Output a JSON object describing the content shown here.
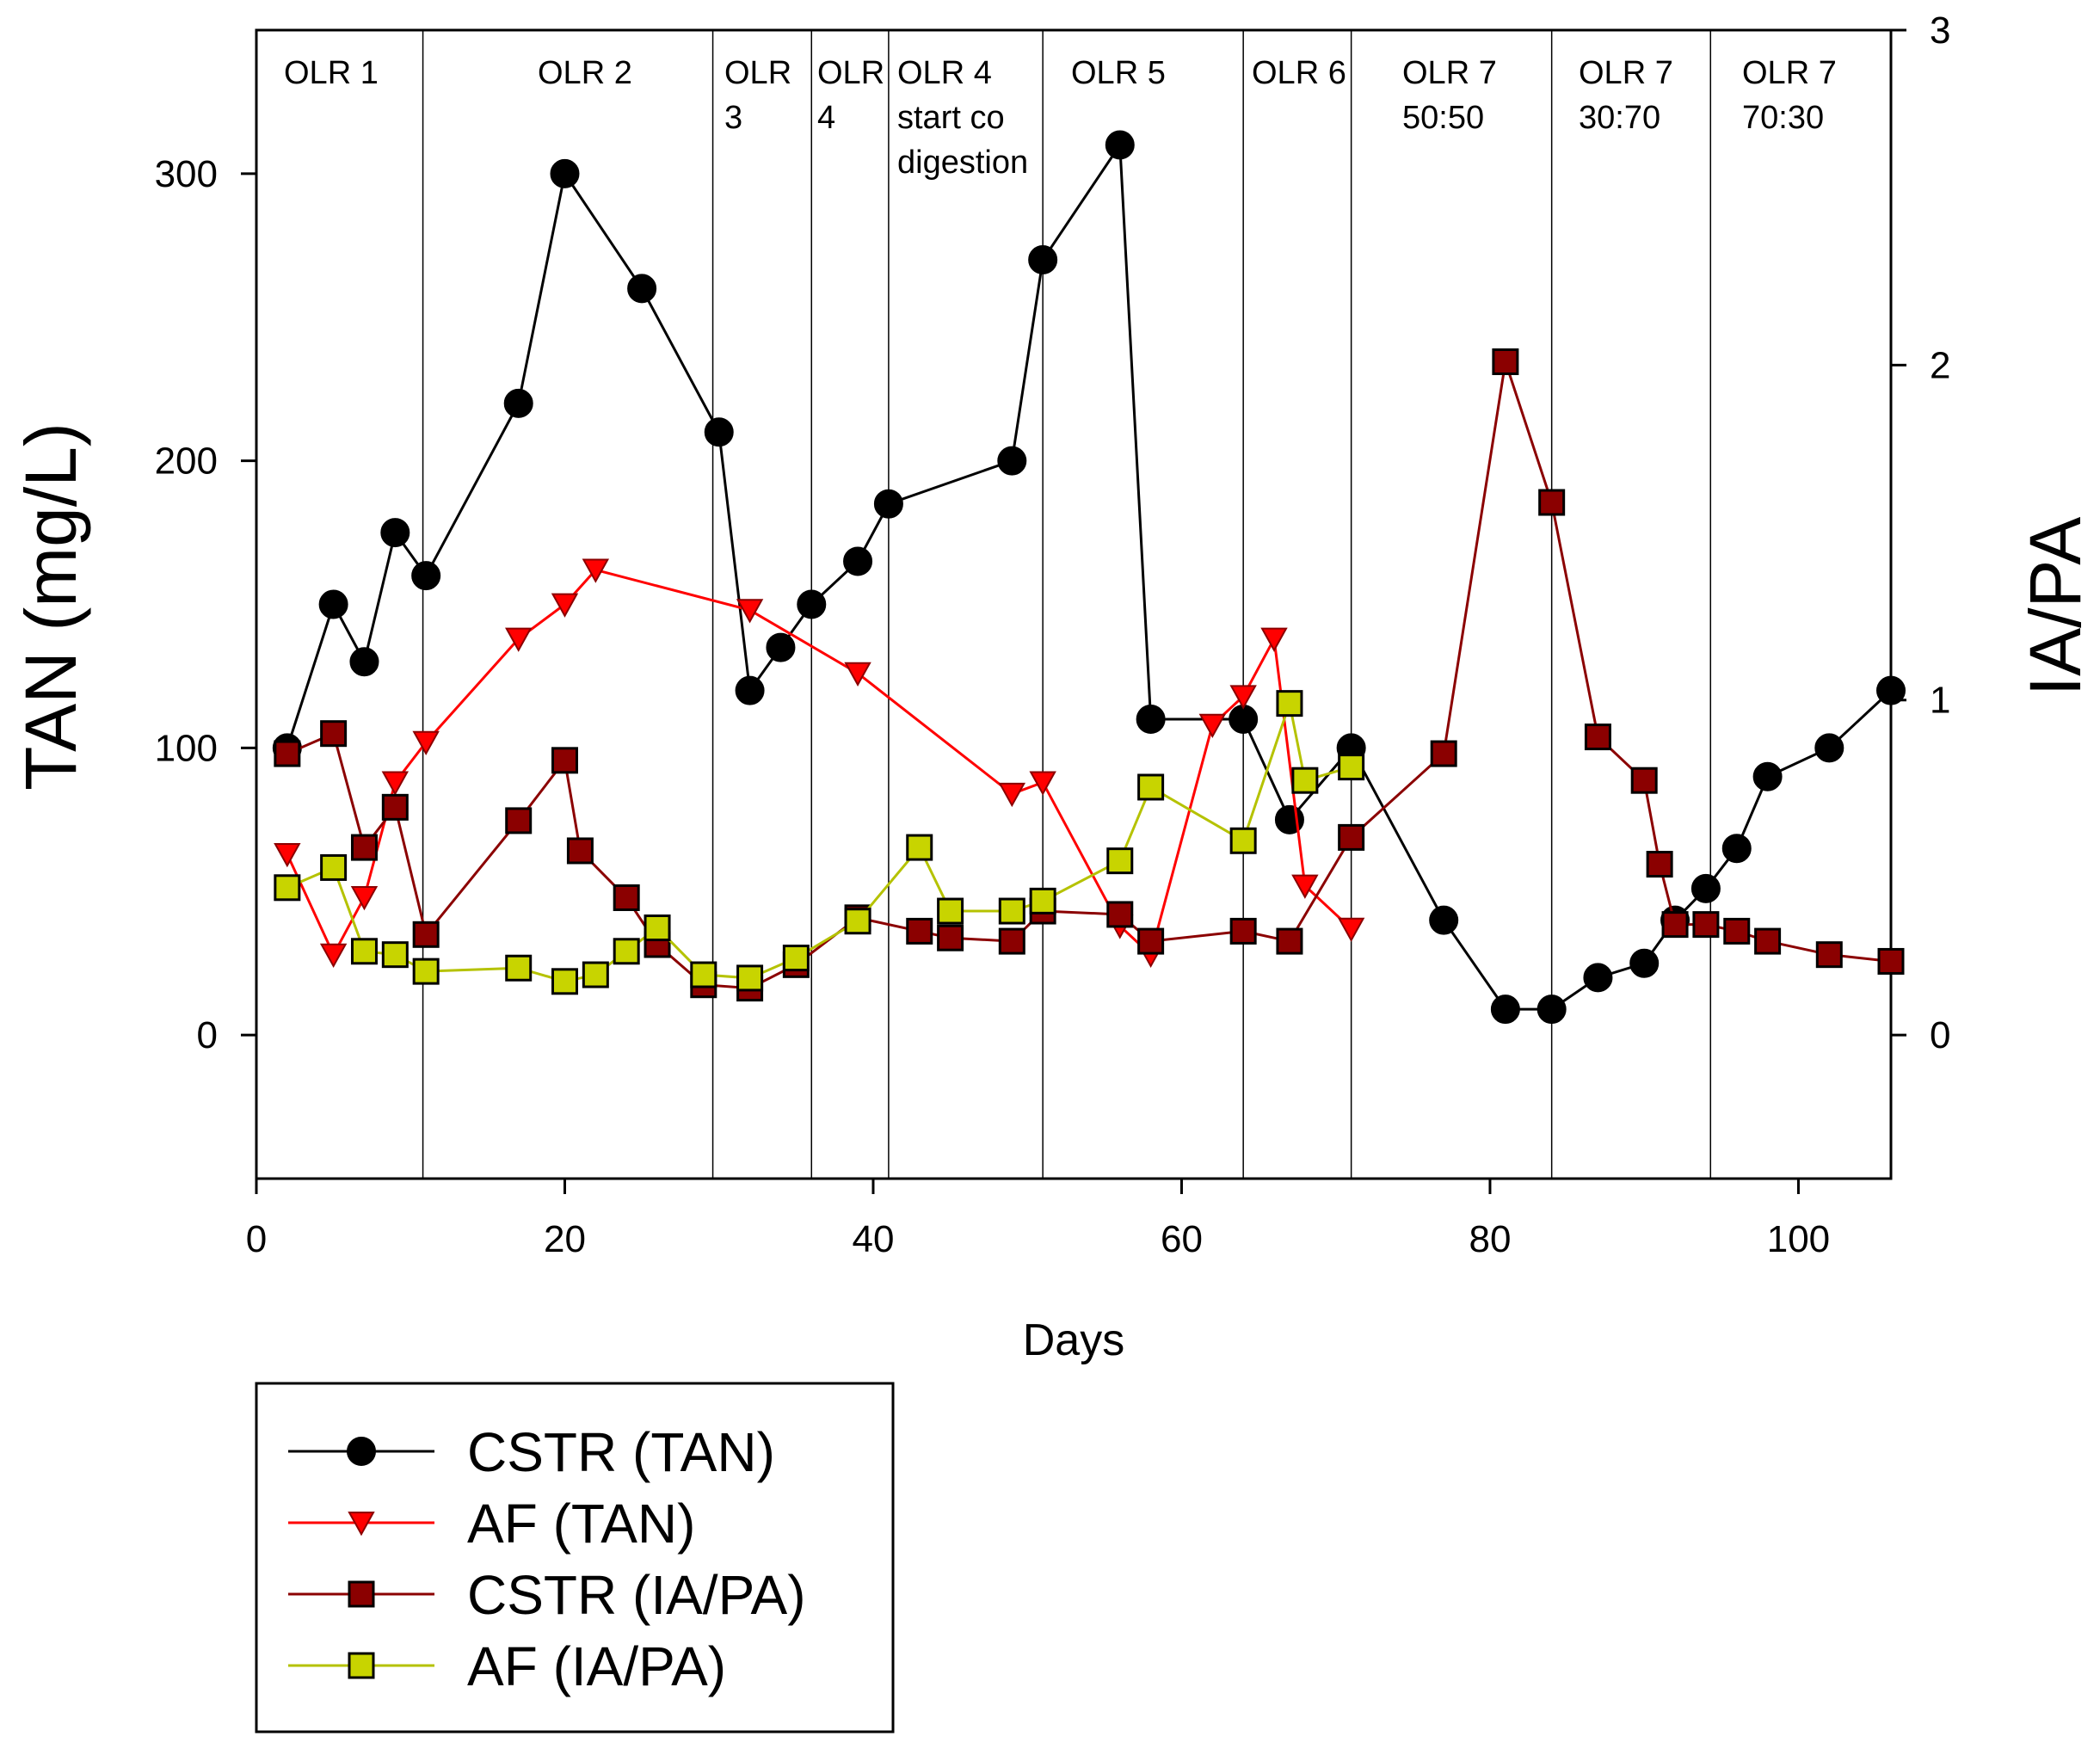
{
  "chart_data": {
    "type": "line",
    "title": "",
    "xlabel": "Days",
    "ylabel": "TAN (mg/L)",
    "y2label": "IA/PA",
    "xlim": [
      0,
      106
    ],
    "ylim": [
      -50,
      350
    ],
    "y2lim": [
      -0.4286,
      3
    ],
    "x_ticks": [
      0,
      20,
      40,
      60,
      80,
      100
    ],
    "y_ticks": [
      0,
      100,
      200,
      300
    ],
    "y2_ticks": [
      0,
      1,
      2,
      3
    ],
    "grid": false,
    "legend_position": "bottom-left outside",
    "colors": {
      "cstr_tan_line": "#000000",
      "cstr_tan_marker": "#000000",
      "af_tan_line": "#ff0000",
      "af_tan_marker": "#ff0000",
      "cstr_iapa_line": "#8b0000",
      "cstr_iapa_marker": "#8b0000",
      "af_iapa_line": "#b5c200",
      "af_iapa_marker": "#c8d400",
      "marker_edge": "#000000"
    },
    "series": [
      {
        "name": "CSTR (TAN)",
        "axis": "left",
        "marker": "circle",
        "x": [
          2,
          5,
          7,
          9,
          11,
          17,
          20,
          25,
          30,
          32,
          34,
          36,
          39,
          41,
          49,
          51,
          56,
          58,
          64,
          67,
          71,
          77,
          81,
          84,
          87,
          90,
          92,
          94,
          96,
          98,
          102,
          106
        ],
        "values": [
          100,
          150,
          130,
          175,
          160,
          220,
          300,
          260,
          210,
          120,
          135,
          150,
          165,
          185,
          200,
          270,
          310,
          110,
          110,
          75,
          100,
          40,
          9,
          9,
          20,
          25,
          40,
          51,
          65,
          90,
          100,
          120
        ]
      },
      {
        "name": "AF (TAN)",
        "axis": "left",
        "marker": "triangle-down",
        "x": [
          2,
          5,
          7,
          9,
          11,
          17,
          20,
          22,
          32,
          39,
          49,
          51,
          56,
          58,
          62,
          64,
          66,
          68,
          71
        ],
        "values": [
          63,
          28,
          48,
          88,
          102,
          138,
          150,
          162,
          148,
          126,
          84,
          88,
          38,
          28,
          108,
          118,
          138,
          52,
          37
        ]
      },
      {
        "name": "CSTR (IA/PA)",
        "axis": "right",
        "marker": "square",
        "x": [
          2,
          5,
          7,
          9,
          11,
          17,
          20,
          21,
          24,
          26,
          29,
          32,
          35,
          39,
          43,
          45,
          49,
          51,
          56,
          58,
          64,
          67,
          71,
          77,
          81,
          84,
          87,
          90,
          91,
          92,
          94,
          96,
          98,
          102,
          106
        ],
        "values": [
          0.84,
          0.9,
          0.56,
          0.68,
          0.3,
          0.64,
          0.82,
          0.55,
          0.41,
          0.27,
          0.15,
          0.14,
          0.21,
          0.35,
          0.31,
          0.29,
          0.28,
          0.37,
          0.36,
          0.28,
          0.31,
          0.28,
          0.59,
          0.84,
          2.01,
          1.59,
          0.89,
          0.76,
          0.51,
          0.33,
          0.33,
          0.31,
          0.28,
          0.24,
          0.22
        ]
      },
      {
        "name": "AF (IA/PA)",
        "axis": "right",
        "marker": "square",
        "x": [
          2,
          5,
          7,
          9,
          11,
          17,
          20,
          22,
          24,
          26,
          29,
          32,
          35,
          39,
          43,
          45,
          49,
          51,
          56,
          58,
          64,
          67,
          68,
          71
        ],
        "values": [
          0.44,
          0.5,
          0.25,
          0.24,
          0.19,
          0.2,
          0.16,
          0.18,
          0.25,
          0.32,
          0.18,
          0.17,
          0.23,
          0.34,
          0.56,
          0.37,
          0.37,
          0.4,
          0.52,
          0.74,
          0.58,
          0.99,
          0.76,
          0.8
        ]
      }
    ],
    "regions": [
      {
        "label_lines": [
          "OLR 1"
        ],
        "x_start": 2,
        "x_end": 11
      },
      {
        "label_lines": [
          "OLR 2"
        ],
        "x_start": 11,
        "x_end": 30
      },
      {
        "label_lines": [
          "OLR",
          "3"
        ],
        "x_start": 30,
        "x_end": 36
      },
      {
        "label_lines": [
          "OLR",
          "4"
        ],
        "x_start": 36,
        "x_end": 41
      },
      {
        "label_lines": [
          "OLR 4",
          "start co",
          "digestion"
        ],
        "x_start": 41,
        "x_end": 51
      },
      {
        "label_lines": [
          "OLR 5"
        ],
        "x_start": 51,
        "x_end": 64
      },
      {
        "label_lines": [
          "OLR 6"
        ],
        "x_start": 64,
        "x_end": 71
      },
      {
        "label_lines": [
          "OLR 7",
          "50:50"
        ],
        "x_start": 71,
        "x_end": 84
      },
      {
        "label_lines": [
          "OLR 7",
          "30:70"
        ],
        "x_start": 84,
        "x_end": 94.3
      },
      {
        "label_lines": [
          "OLR 7",
          "70:30"
        ],
        "x_start": 94.3,
        "x_end": 106
      }
    ],
    "region_boundaries": [
      10.8,
      29.6,
      36,
      41,
      51,
      64,
      71,
      84,
      94.3
    ]
  }
}
